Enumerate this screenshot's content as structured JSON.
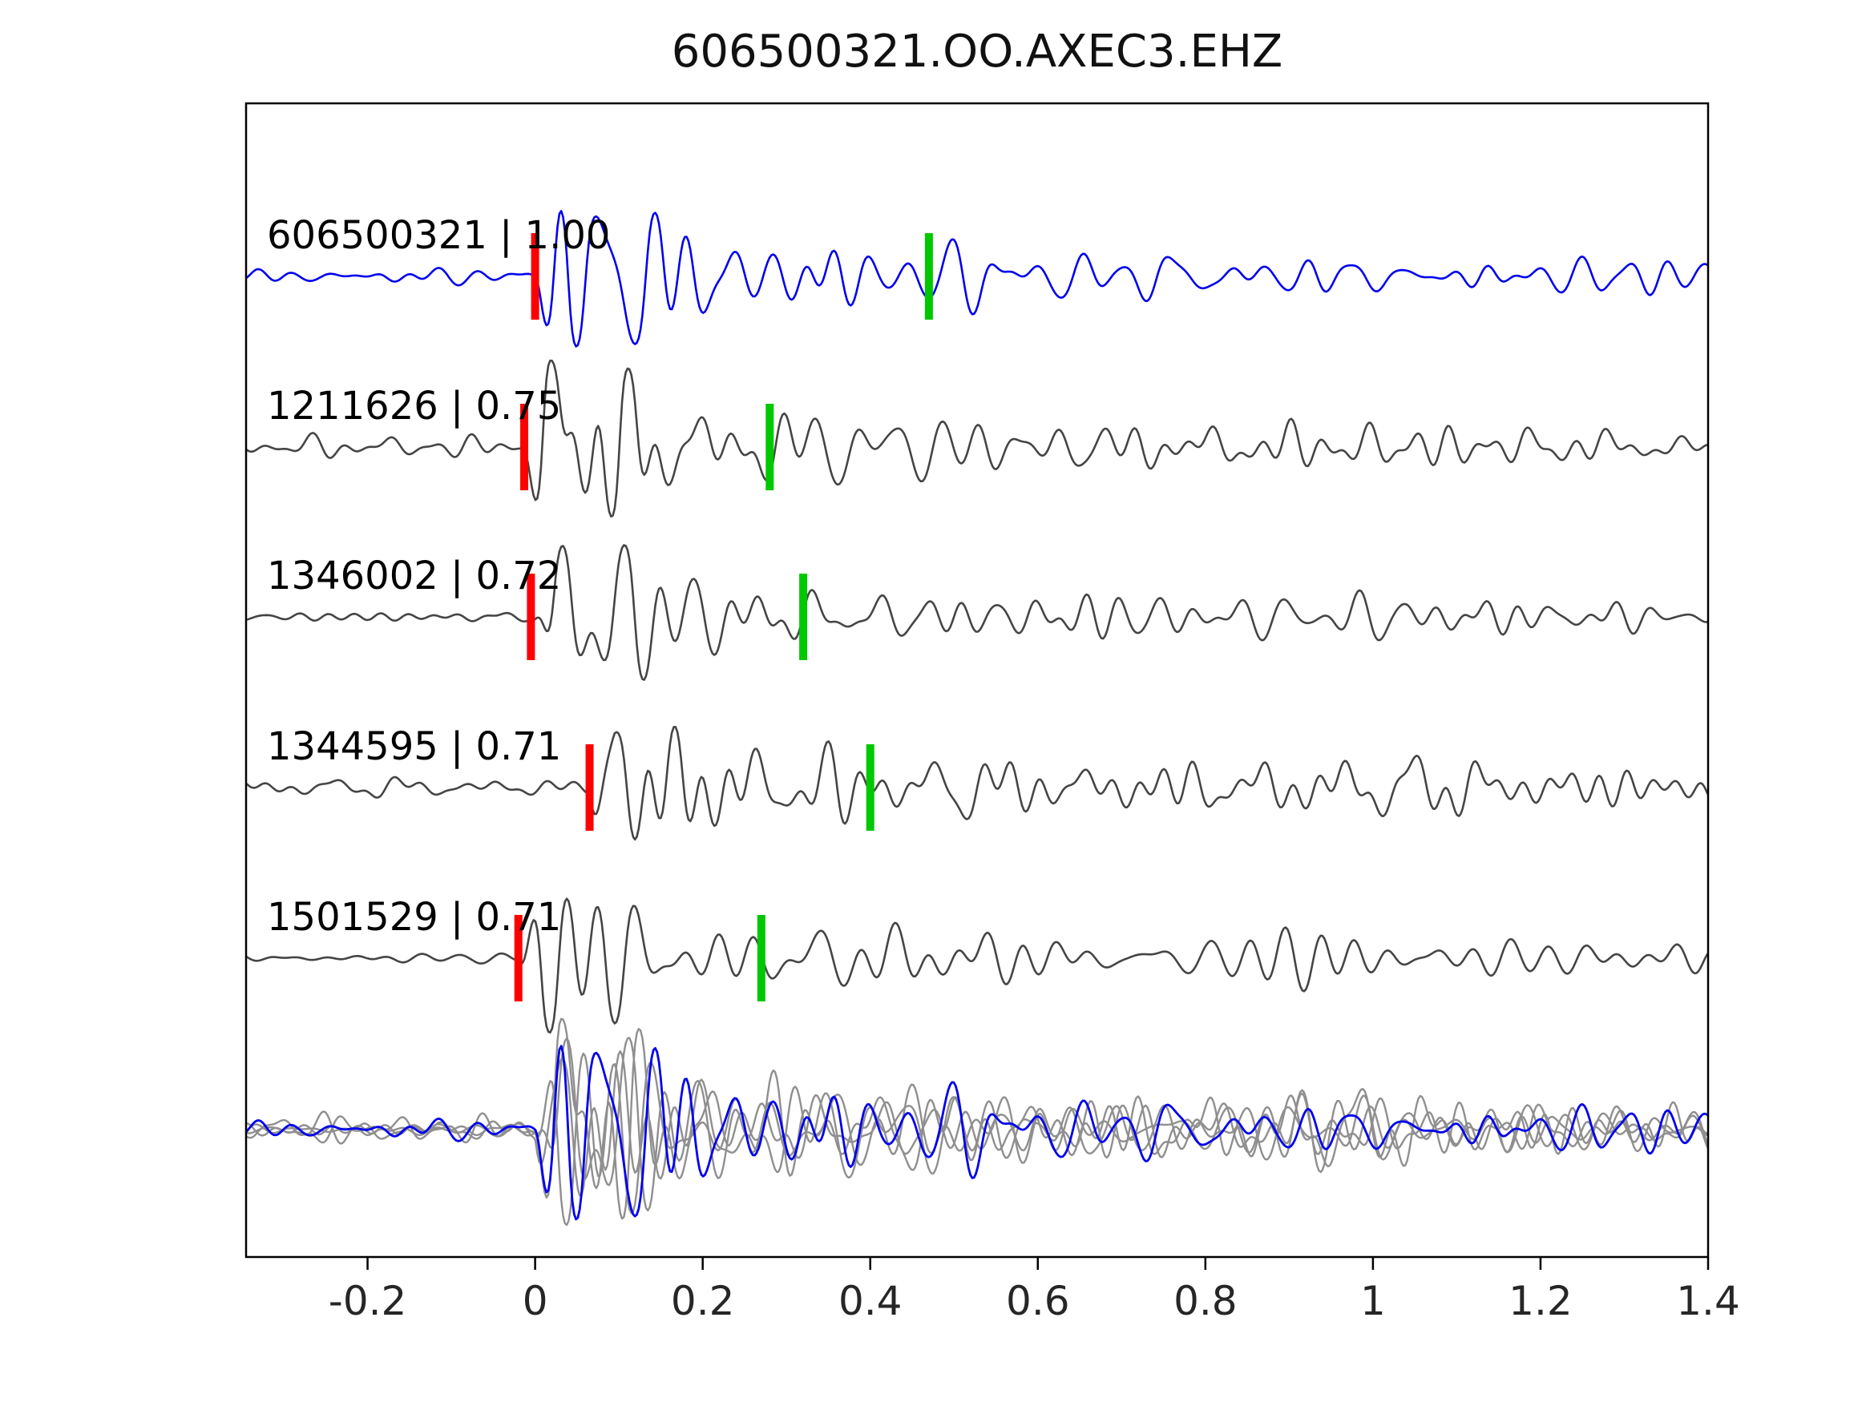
{
  "title": "606500321.OO.AXEC3.EHZ",
  "chart_data": {
    "type": "line",
    "title": "606500321.OO.AXEC3.EHZ",
    "xlabel": "",
    "ylabel": "",
    "xlim": [
      -0.345,
      1.4
    ],
    "xticks": [
      -0.2,
      0,
      0.2,
      0.4,
      0.6,
      0.8,
      1,
      1.2,
      1.4
    ],
    "xtick_labels": [
      "-0.2",
      "0",
      "0.2",
      "0.4",
      "0.6",
      "0.8",
      "1",
      "1.2",
      "1.4"
    ],
    "grid": false,
    "legend": "none",
    "description": "Seismic template-matching figure: top blue trace is the reference event, four gray traces are matched detections labeled 'id | correlation'. Red vertical bars mark pick/onset times, green vertical bars mark a secondary pick. Bottom row overlays all traces aligned on their red picks (gray) with the reference in blue.",
    "pick_colors": {
      "red": "#ff0000",
      "green": "#00c800"
    },
    "traces": [
      {
        "id": "606500321",
        "similarity": 1.0,
        "label": "606500321 | 1.00",
        "color": "#0000ee",
        "pick_red": 0.0,
        "pick_green": 0.47
      },
      {
        "id": "1211626",
        "similarity": 0.75,
        "label": "1211626 | 0.75",
        "color": "#454545",
        "pick_red": -0.013,
        "pick_green": 0.28
      },
      {
        "id": "1346002",
        "similarity": 0.72,
        "label": "1346002 | 0.72",
        "color": "#454545",
        "pick_red": -0.005,
        "pick_green": 0.32
      },
      {
        "id": "1344595",
        "similarity": 0.71,
        "label": "1344595 | 0.71",
        "color": "#454545",
        "pick_red": 0.065,
        "pick_green": 0.4
      },
      {
        "id": "1501529",
        "similarity": 0.71,
        "label": "1501529 | 0.71",
        "color": "#454545",
        "pick_red": -0.02,
        "pick_green": 0.27
      }
    ],
    "stack": {
      "gray_color": "#8f8f8f",
      "highlight_color": "#0000ee",
      "note": "overlay of all traces aligned on red picks"
    }
  },
  "render": {
    "seeds": [
      11,
      23,
      37,
      53,
      71
    ]
  }
}
